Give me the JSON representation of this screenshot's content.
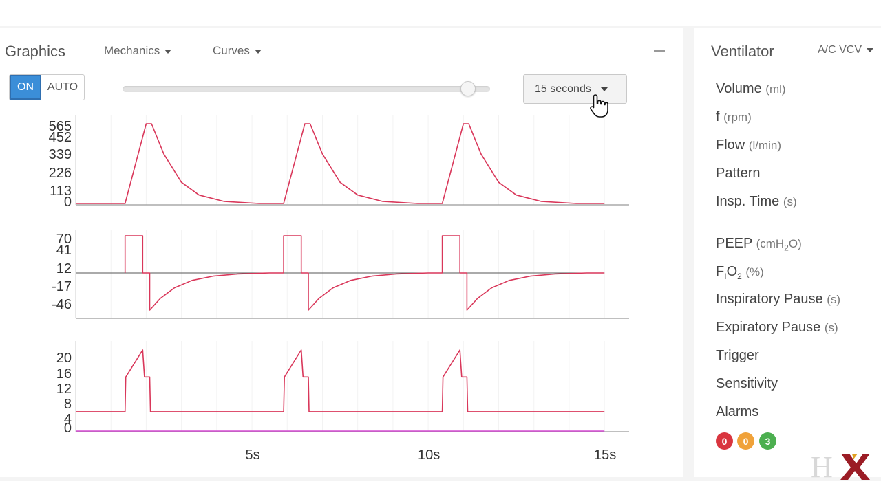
{
  "header": {
    "title": "Graphics",
    "mechanics_label": "Mechanics",
    "curves_label": "Curves"
  },
  "toolbar": {
    "on_label": "ON",
    "auto_label": "AUTO",
    "time_window_label": "15 seconds",
    "slider_value_fraction": 0.94
  },
  "chart_data": [
    {
      "type": "line",
      "yticks": [
        "565",
        "452",
        "339",
        "226",
        "113",
        "0"
      ],
      "ylim": [
        0,
        600
      ],
      "series": [
        {
          "color": "#d9375a",
          "points": [
            [
              0,
              0
            ],
            [
              1.4,
              0
            ],
            [
              2.0,
              565
            ],
            [
              2.15,
              565
            ],
            [
              2.5,
              350
            ],
            [
              3.0,
              150
            ],
            [
              3.5,
              60
            ],
            [
              4.2,
              15
            ],
            [
              5.2,
              0
            ],
            [
              5.9,
              0
            ],
            [
              6.5,
              565
            ],
            [
              6.65,
              565
            ],
            [
              7.0,
              350
            ],
            [
              7.5,
              150
            ],
            [
              8.0,
              60
            ],
            [
              8.7,
              15
            ],
            [
              9.7,
              0
            ],
            [
              10.4,
              0
            ],
            [
              11.0,
              565
            ],
            [
              11.15,
              565
            ],
            [
              11.5,
              350
            ],
            [
              12.0,
              150
            ],
            [
              12.5,
              60
            ],
            [
              13.2,
              15
            ],
            [
              14.2,
              0
            ],
            [
              15.0,
              0
            ]
          ]
        }
      ]
    },
    {
      "type": "line",
      "yticks": [
        "70",
        "41",
        "12",
        "-17",
        "-46"
      ],
      "ylim": [
        -46,
        70
      ],
      "series": [
        {
          "color": "#d9375a",
          "points": [
            [
              1.4,
              0
            ],
            [
              1.4,
              70
            ],
            [
              1.9,
              70
            ],
            [
              1.9,
              0
            ],
            [
              2.1,
              0
            ],
            [
              2.1,
              -70
            ],
            [
              2.4,
              -48
            ],
            [
              2.8,
              -28
            ],
            [
              3.3,
              -14
            ],
            [
              3.9,
              -6
            ],
            [
              4.6,
              -2
            ],
            [
              5.5,
              0
            ],
            [
              5.9,
              0
            ],
            [
              5.9,
              70
            ],
            [
              6.4,
              70
            ],
            [
              6.4,
              0
            ],
            [
              6.6,
              0
            ],
            [
              6.6,
              -70
            ],
            [
              6.9,
              -48
            ],
            [
              7.3,
              -28
            ],
            [
              7.8,
              -14
            ],
            [
              8.4,
              -6
            ],
            [
              9.1,
              -2
            ],
            [
              10.0,
              0
            ],
            [
              10.4,
              0
            ],
            [
              10.4,
              70
            ],
            [
              10.9,
              70
            ],
            [
              10.9,
              0
            ],
            [
              11.1,
              0
            ],
            [
              11.1,
              -70
            ],
            [
              11.4,
              -48
            ],
            [
              11.8,
              -28
            ],
            [
              12.3,
              -14
            ],
            [
              12.9,
              -6
            ],
            [
              13.6,
              -2
            ],
            [
              14.5,
              0
            ],
            [
              15.0,
              0
            ]
          ]
        }
      ]
    },
    {
      "type": "line",
      "yticks": [
        "20",
        "16",
        "12",
        "8",
        "4",
        "0"
      ],
      "xticks": [
        "5s",
        "10s",
        "15s"
      ],
      "xtick_values": [
        5,
        10,
        15
      ],
      "xlim": [
        0,
        15.7
      ],
      "ylim": [
        0,
        22
      ],
      "series": [
        {
          "color": "#d9375a",
          "points": [
            [
              0,
              5
            ],
            [
              1.4,
              5
            ],
            [
              1.42,
              14
            ],
            [
              1.9,
              21
            ],
            [
              1.95,
              14
            ],
            [
              2.1,
              14
            ],
            [
              2.12,
              5
            ],
            [
              5.9,
              5
            ],
            [
              5.92,
              14
            ],
            [
              6.4,
              21
            ],
            [
              6.45,
              14
            ],
            [
              6.6,
              14
            ],
            [
              6.62,
              5
            ],
            [
              10.4,
              5
            ],
            [
              10.42,
              14
            ],
            [
              10.9,
              21
            ],
            [
              10.95,
              14
            ],
            [
              11.1,
              14
            ],
            [
              11.12,
              5
            ],
            [
              15.0,
              5
            ]
          ]
        },
        {
          "color": "#d64bd4",
          "points": [
            [
              0,
              0
            ],
            [
              15.0,
              0
            ]
          ]
        }
      ]
    }
  ],
  "ventilator": {
    "title": "Ventilator",
    "mode_label": "A/C VCV",
    "params": [
      {
        "label": "Volume",
        "unit": "(ml)"
      },
      {
        "label": "f",
        "unit": "(rpm)"
      },
      {
        "label": "Flow",
        "unit": "(l/min)"
      },
      {
        "label": "Pattern",
        "unit": ""
      },
      {
        "label": "Insp. Time",
        "unit": "(s)"
      },
      {
        "label": "PEEP",
        "unit_prefix": "(cmH",
        "unit_sub": "2",
        "unit_suffix": "O)"
      },
      {
        "label_prefix": "F",
        "label_sub": "I",
        "label_main": "O",
        "label_sub2": "2",
        "unit": "(%)"
      },
      {
        "label": "Inspiratory Pause",
        "unit": "(s)"
      },
      {
        "label": "Expiratory Pause",
        "unit": "(s)"
      },
      {
        "label": "Trigger",
        "unit": ""
      },
      {
        "label": "Sensitivity",
        "unit": ""
      },
      {
        "label": "Alarms",
        "unit": ""
      }
    ],
    "alarms": [
      {
        "count": "0",
        "color": "#d9353f"
      },
      {
        "count": "0",
        "color": "#f0a23a"
      },
      {
        "count": "3",
        "color": "#4caf50"
      }
    ]
  }
}
